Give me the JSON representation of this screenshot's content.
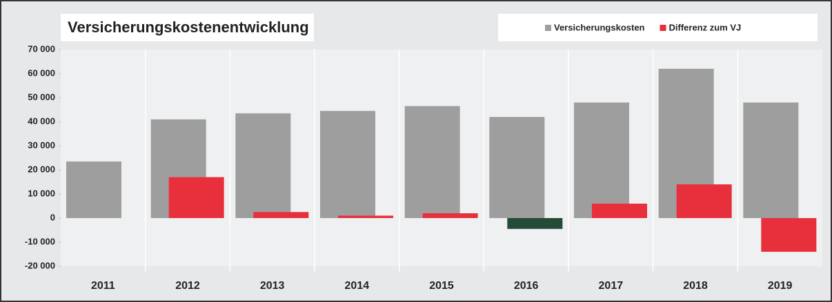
{
  "chart_data": {
    "type": "bar",
    "title": "Versicherungskostenentwicklung",
    "categories": [
      "2011",
      "2012",
      "2013",
      "2014",
      "2015",
      "2016",
      "2017",
      "2018",
      "2019"
    ],
    "series": [
      {
        "name": "Versicherungskosten",
        "color": "#9e9e9e",
        "values": [
          23500,
          41000,
          43500,
          44500,
          46500,
          42000,
          48000,
          62000,
          48000
        ]
      },
      {
        "name": "Differenz zum VJ",
        "color": "#e8303c",
        "values": [
          null,
          17000,
          2500,
          1000,
          2000,
          -4500,
          6000,
          14000,
          -14000
        ],
        "colors": [
          "#e8303c",
          "#e8303c",
          "#e8303c",
          "#e8303c",
          "#e8303c",
          "#254a35",
          "#e8303c",
          "#e8303c",
          "#e8303c"
        ]
      }
    ],
    "ylim": [
      -20000,
      70000
    ],
    "yticks": [
      {
        "value": -20000,
        "label": "-20 000"
      },
      {
        "value": -10000,
        "label": "-10 000"
      },
      0,
      {
        "value": 10000,
        "label": "10 000"
      },
      {
        "value": 20000,
        "label": "20 000"
      },
      {
        "value": 30000,
        "label": "30 000"
      },
      {
        "value": 40000,
        "label": "40 000"
      },
      {
        "value": 50000,
        "label": "50 000"
      },
      {
        "value": 60000,
        "label": "60 000"
      },
      {
        "value": 70000,
        "label": "70 000"
      }
    ],
    "legend": "top-right"
  }
}
